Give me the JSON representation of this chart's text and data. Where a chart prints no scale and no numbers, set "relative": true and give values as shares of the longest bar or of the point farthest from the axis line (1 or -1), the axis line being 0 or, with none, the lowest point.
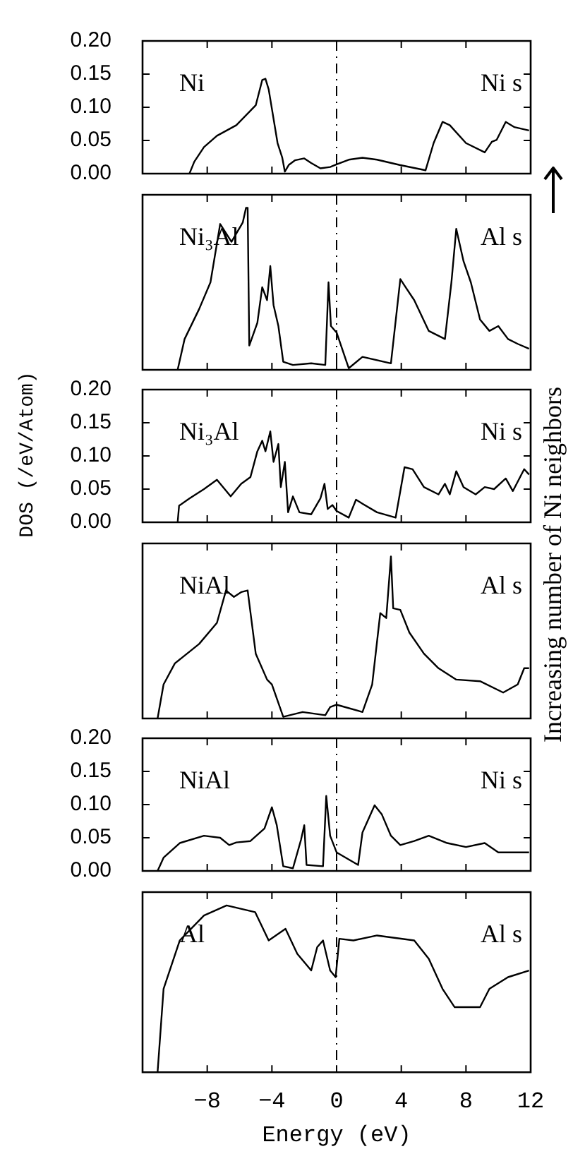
{
  "chart_data": [
    {
      "type": "line",
      "xlim": [
        -12,
        12
      ],
      "xticks": [
        {
          "value": -8,
          "label": null
        },
        {
          "value": -4,
          "label": null
        },
        {
          "value": 0,
          "label": null
        },
        {
          "value": 4,
          "label": null
        },
        {
          "value": 8,
          "label": null
        }
      ],
      "ylim": [
        0,
        0.2
      ],
      "yticks": [
        {
          "value": 0,
          "label": "0.00"
        },
        {
          "value": 0.05,
          "label": "0.05"
        },
        {
          "value": 0.1,
          "label": "0.10"
        },
        {
          "value": 0.15,
          "label": "0.15"
        },
        {
          "value": 0.2,
          "label": "0.20"
        }
      ],
      "tick_labels": "y",
      "marker": "none",
      "annotations": [
        "Ni",
        "Ni s"
      ],
      "ref_lines": [
        {
          "axis": "x",
          "value": 0,
          "line_style": "dashed"
        }
      ],
      "series": [
        {
          "color": "#000000",
          "x": [
            -9.1,
            -8.8,
            -8.2,
            -7.4,
            -6.2,
            -5.0,
            -4.6,
            -4.4,
            -4.2,
            -3.65,
            -3.36,
            -3.2,
            -2.96,
            -2.58,
            -2.0,
            -1.57,
            -1.0,
            -0.4,
            0,
            0.75,
            1.6,
            2.5,
            3.9,
            5.5,
            6.0,
            6.55,
            7.0,
            8.0,
            9.16,
            9.6,
            9.9,
            10.46,
            11.0,
            11.9
          ],
          "values": [
            0,
            0.018,
            0.04,
            0.057,
            0.073,
            0.103,
            0.141,
            0.143,
            0.127,
            0.046,
            0.024,
            0.003,
            0.013,
            0.02,
            0.023,
            0.016,
            0.008,
            0.01,
            0.014,
            0.021,
            0.024,
            0.021,
            0.013,
            0.005,
            0.046,
            0.078,
            0.073,
            0.046,
            0.032,
            0.048,
            0.051,
            0.078,
            0.07,
            0.065
          ]
        }
      ]
    },
    {
      "type": "line",
      "xlim": [
        -12,
        12
      ],
      "xticks": [
        {
          "value": -8,
          "label": null
        },
        {
          "value": -4,
          "label": null
        },
        {
          "value": 0,
          "label": null
        },
        {
          "value": 4,
          "label": null
        },
        {
          "value": 8,
          "label": null
        }
      ],
      "relative": true,
      "tick_labels": false,
      "marker": "none",
      "annotations": [
        "Ni₃Al",
        "Al s"
      ],
      "ref_lines": [
        {
          "axis": "x",
          "value": 0,
          "line_style": "dashed"
        }
      ],
      "series": [
        {
          "color": "#000000",
          "x": [
            -9.83,
            -9.4,
            -8.5,
            -7.8,
            -7.2,
            -6.5,
            -5.8,
            -5.6,
            -5.5,
            -5.4,
            -4.9,
            -4.6,
            -4.3,
            -4.1,
            -3.9,
            -3.6,
            -3.3,
            -2.7,
            -1.57,
            -0.7,
            -0.5,
            -0.35,
            0,
            0.75,
            1.6,
            3.36,
            3.94,
            4.2,
            4.8,
            5.7,
            6.7,
            7.1,
            7.4,
            7.85,
            8.3,
            8.87,
            9.45,
            10.0,
            10.6,
            11.2,
            11.9
          ],
          "values": [
            0,
            0.19,
            0.375,
            0.54,
            0.9,
            0.79,
            0.91,
            1,
            1,
            0.15,
            0.29,
            0.51,
            0.43,
            0.64,
            0.4,
            0.27,
            0.05,
            0.03,
            0.04,
            0.03,
            0.54,
            0.27,
            0.23,
            0.01,
            0.08,
            0.04,
            0.56,
            0.52,
            0.43,
            0.24,
            0.19,
            0.54,
            0.87,
            0.67,
            0.54,
            0.31,
            0.24,
            0.27,
            0.19,
            0.16,
            0.13
          ]
        }
      ]
    },
    {
      "type": "line",
      "xlim": [
        -12,
        12
      ],
      "xticks": [
        {
          "value": -8,
          "label": null
        },
        {
          "value": -4,
          "label": null
        },
        {
          "value": 0,
          "label": null
        },
        {
          "value": 4,
          "label": null
        },
        {
          "value": 8,
          "label": null
        }
      ],
      "ylim": [
        0,
        0.2
      ],
      "yticks": [
        {
          "value": 0,
          "label": "0.00"
        },
        {
          "value": 0.05,
          "label": "0.05"
        },
        {
          "value": 0.1,
          "label": "0.10"
        },
        {
          "value": 0.15,
          "label": "0.15"
        },
        {
          "value": 0.2,
          "label": "0.20"
        }
      ],
      "tick_labels": "y",
      "marker": "none",
      "ylabel": "DOS (/eV/Atom)",
      "annotations": [
        "Ni₃Al",
        "Ni s",
        "Increasing number of Ni neighbors"
      ],
      "ref_lines": [
        {
          "axis": "x",
          "value": 0,
          "line_style": "dashed"
        }
      ],
      "series": [
        {
          "color": "#000000",
          "x": [
            -9.83,
            -9.74,
            -9.1,
            -8.2,
            -7.4,
            -6.55,
            -5.9,
            -5.33,
            -4.9,
            -4.6,
            -4.4,
            -4.1,
            -3.9,
            -3.6,
            -3.45,
            -3.2,
            -3.0,
            -2.7,
            -2.3,
            -1.57,
            -1.0,
            -0.75,
            -0.55,
            -0.26,
            0,
            0.75,
            1.2,
            1.6,
            2.5,
            3.65,
            4.2,
            4.7,
            5.4,
            6.3,
            6.7,
            7.0,
            7.4,
            7.85,
            8.6,
            9.16,
            9.74,
            10.46,
            10.9,
            11.6,
            11.9
          ],
          "values": [
            0,
            0.025,
            0.036,
            0.05,
            0.064,
            0.039,
            0.058,
            0.068,
            0.107,
            0.123,
            0.107,
            0.137,
            0.091,
            0.118,
            0.053,
            0.091,
            0.015,
            0.039,
            0.015,
            0.012,
            0.036,
            0.058,
            0.02,
            0.026,
            0.017,
            0.007,
            0.034,
            0.028,
            0.015,
            0.007,
            0.083,
            0.08,
            0.053,
            0.042,
            0.058,
            0.042,
            0.077,
            0.053,
            0.042,
            0.053,
            0.05,
            0.066,
            0.047,
            0.08,
            0.072
          ]
        }
      ]
    },
    {
      "type": "line",
      "xlim": [
        -12,
        12
      ],
      "xticks": [
        {
          "value": -8,
          "label": null
        },
        {
          "value": -4,
          "label": null
        },
        {
          "value": 0,
          "label": null
        },
        {
          "value": 4,
          "label": null
        },
        {
          "value": 8,
          "label": null
        }
      ],
      "relative": true,
      "tick_labels": false,
      "marker": "none",
      "annotations": [
        "NiAl",
        "Al s"
      ],
      "ref_lines": [
        {
          "axis": "x",
          "value": 0,
          "line_style": "dashed"
        }
      ],
      "series": [
        {
          "color": "#000000",
          "x": [
            -11.07,
            -10.7,
            -10.0,
            -8.5,
            -7.4,
            -6.84,
            -6.35,
            -5.9,
            -5.5,
            -5.0,
            -4.3,
            -4.0,
            -3.3,
            -2.1,
            -0.7,
            -0.4,
            0,
            1.6,
            2.2,
            2.7,
            3.07,
            3.36,
            3.5,
            3.94,
            4.5,
            5.4,
            6.3,
            7.4,
            8.87,
            10.3,
            11.2,
            11.6,
            11.9
          ],
          "values": [
            0,
            0.21,
            0.34,
            0.46,
            0.59,
            0.79,
            0.75,
            0.78,
            0.79,
            0.4,
            0.24,
            0.21,
            0.01,
            0.04,
            0.02,
            0.07,
            0.085,
            0.04,
            0.21,
            0.65,
            0.62,
            1,
            0.68,
            0.67,
            0.53,
            0.4,
            0.31,
            0.24,
            0.23,
            0.16,
            0.21,
            0.31,
            0.31
          ]
        }
      ]
    },
    {
      "type": "line",
      "xlim": [
        -12,
        12
      ],
      "xticks": [
        {
          "value": -8,
          "label": null
        },
        {
          "value": -4,
          "label": null
        },
        {
          "value": 0,
          "label": null
        },
        {
          "value": 4,
          "label": null
        },
        {
          "value": 8,
          "label": null
        }
      ],
      "ylim": [
        0,
        0.2
      ],
      "yticks": [
        {
          "value": 0,
          "label": "0.00"
        },
        {
          "value": 0.05,
          "label": "0.05"
        },
        {
          "value": 0.1,
          "label": "0.10"
        },
        {
          "value": 0.15,
          "label": "0.15"
        },
        {
          "value": 0.2,
          "label": "0.20"
        }
      ],
      "tick_labels": "y",
      "marker": "none",
      "annotations": [
        "NiAl",
        "Ni s"
      ],
      "ref_lines": [
        {
          "axis": "x",
          "value": 0,
          "line_style": "dashed"
        }
      ],
      "series": [
        {
          "color": "#000000",
          "x": [
            -11.07,
            -10.7,
            -9.7,
            -8.2,
            -7.2,
            -6.64,
            -6.2,
            -5.33,
            -4.46,
            -4.0,
            -3.7,
            -3.3,
            -2.7,
            -2.2,
            -2.0,
            -1.86,
            -0.84,
            -0.64,
            -0.4,
            0,
            1.33,
            1.6,
            2.35,
            2.8,
            3.36,
            3.94,
            4.8,
            5.7,
            6.84,
            8.0,
            9.16,
            10.0,
            11.9
          ],
          "values": [
            0,
            0.02,
            0.042,
            0.053,
            0.05,
            0.039,
            0.043,
            0.045,
            0.064,
            0.096,
            0.069,
            0.007,
            0.004,
            0.047,
            0.069,
            0.009,
            0.007,
            0.113,
            0.053,
            0.028,
            0.009,
            0.058,
            0.099,
            0.085,
            0.053,
            0.039,
            0.045,
            0.053,
            0.042,
            0.036,
            0.042,
            0.028,
            0.028
          ]
        }
      ]
    },
    {
      "type": "line",
      "xlim": [
        -12,
        12
      ],
      "xticks": [
        {
          "value": -8,
          "label": "−8"
        },
        {
          "value": -4,
          "label": "−4"
        },
        0,
        4,
        8,
        12
      ],
      "relative": true,
      "tick_labels": "x",
      "marker": "none",
      "xlabel": "Energy (eV)",
      "annotations": [
        "Al",
        "Al s"
      ],
      "ref_lines": [
        {
          "axis": "x",
          "value": 0,
          "line_style": "dashed"
        }
      ],
      "series": [
        {
          "color": "#000000",
          "x": [
            -11.07,
            -10.7,
            -9.7,
            -8.2,
            -6.8,
            -5.04,
            -4.2,
            -3.16,
            -2.43,
            -1.57,
            -1.2,
            -0.84,
            -0.4,
            -0.06,
            0.17,
            1.04,
            2.5,
            4.8,
            5.7,
            6.55,
            7.3,
            8.87,
            9.45,
            10.6,
            11.9
          ],
          "values": [
            0,
            0.5,
            0.79,
            0.94,
            1,
            0.96,
            0.79,
            0.86,
            0.71,
            0.61,
            0.75,
            0.79,
            0.61,
            0.57,
            0.8,
            0.79,
            0.82,
            0.79,
            0.68,
            0.5,
            0.39,
            0.39,
            0.5,
            0.57,
            0.61
          ]
        }
      ]
    }
  ]
}
